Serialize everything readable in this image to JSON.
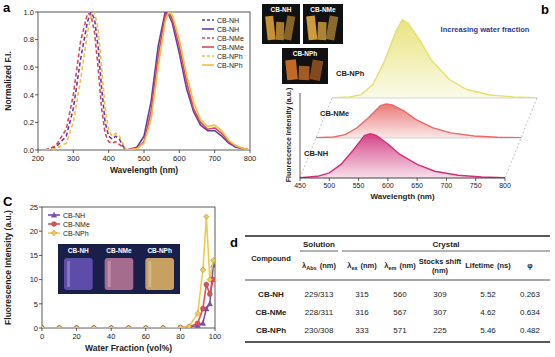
{
  "chart_data": [
    {
      "type": "line",
      "title": "a",
      "x_label": "Wavelength (nm)",
      "y_label": "Normalized F.I.",
      "xlim": [
        200,
        800
      ],
      "xticks": [
        200,
        300,
        400,
        500,
        600,
        700,
        800
      ],
      "ylim": [
        0,
        1
      ],
      "yticks": [
        {
          "value": 0,
          "label": "0.0"
        },
        0.2,
        0.4,
        0.6,
        0.8,
        {
          "value": 1,
          "label": "1.0"
        }
      ],
      "legend": "upper right",
      "annotations": [
        "CB-NH",
        "CB-NMe",
        "CB-NPh"
      ],
      "series": [
        {
          "name": "CB-NH",
          "color": "#6a3d9a",
          "line_style": "dashed",
          "x": [
            220,
            250,
            280,
            300,
            320,
            340,
            350,
            360,
            370,
            380,
            390,
            400,
            410,
            420,
            430,
            440,
            450
          ],
          "values": [
            0,
            0.02,
            0.1,
            0.3,
            0.65,
            0.93,
            1,
            0.95,
            0.75,
            0.45,
            0.2,
            0.1,
            0.08,
            0.1,
            0.08,
            0.03,
            0
          ]
        },
        {
          "name": "CB-NH",
          "color": "#6a3d9a",
          "line_style": "solid",
          "x": [
            450,
            480,
            500,
            520,
            540,
            560,
            570,
            580,
            600,
            620,
            640,
            660,
            680,
            700,
            720,
            740,
            760,
            780,
            800
          ],
          "values": [
            0,
            0.02,
            0.1,
            0.35,
            0.75,
            1,
            0.98,
            0.92,
            0.7,
            0.45,
            0.28,
            0.18,
            0.14,
            0.14,
            0.1,
            0.05,
            0.02,
            0.01,
            0
          ]
        },
        {
          "name": "CB-NMe",
          "color": "#d6485f",
          "line_style": "dashed",
          "x": [
            220,
            250,
            280,
            300,
            320,
            340,
            350,
            360,
            370,
            380,
            390,
            400,
            410,
            420,
            430,
            440,
            450
          ],
          "values": [
            0,
            0.03,
            0.15,
            0.4,
            0.78,
            0.99,
            0.98,
            0.85,
            0.6,
            0.3,
            0.12,
            0.06,
            0.05,
            0.06,
            0.04,
            0.02,
            0
          ]
        },
        {
          "name": "CB-NMe",
          "color": "#d6485f",
          "line_style": "solid",
          "x": [
            450,
            480,
            500,
            520,
            540,
            560,
            570,
            580,
            600,
            620,
            640,
            660,
            680,
            700,
            720,
            740,
            760,
            780,
            800
          ],
          "values": [
            0,
            0.01,
            0.06,
            0.28,
            0.68,
            0.97,
            1,
            0.95,
            0.75,
            0.5,
            0.3,
            0.2,
            0.15,
            0.16,
            0.12,
            0.06,
            0.03,
            0.01,
            0
          ]
        },
        {
          "name": "CB-NPh",
          "color": "#f0c040",
          "line_style": "dashed",
          "x": [
            220,
            250,
            280,
            300,
            320,
            340,
            350,
            360,
            370,
            380,
            390,
            400,
            410,
            420,
            430,
            440,
            450
          ],
          "values": [
            0,
            0.01,
            0.05,
            0.2,
            0.5,
            0.85,
            0.97,
            1,
            0.88,
            0.6,
            0.3,
            0.14,
            0.1,
            0.12,
            0.1,
            0.05,
            0
          ]
        },
        {
          "name": "CB-NPh",
          "color": "#f0c040",
          "line_style": "solid",
          "x": [
            450,
            480,
            500,
            520,
            540,
            560,
            570,
            580,
            600,
            620,
            640,
            660,
            680,
            700,
            720,
            740,
            760,
            780,
            800
          ],
          "values": [
            0,
            0.01,
            0.05,
            0.22,
            0.6,
            0.93,
            1,
            0.98,
            0.8,
            0.55,
            0.35,
            0.22,
            0.17,
            0.18,
            0.14,
            0.07,
            0.03,
            0.01,
            0
          ]
        }
      ]
    },
    {
      "type": "line",
      "title": "b",
      "x_label": "Wavelength (nm)",
      "y_label": "Fluorescence Intensity (a.u.)",
      "xlim": [
        450,
        800
      ],
      "xticks": [
        450,
        500,
        550,
        600,
        650,
        700,
        750,
        800
      ],
      "ylim": [
        0,
        25
      ],
      "tick_labels": "x",
      "annotations": [
        "Increasing water fraction"
      ],
      "x": [
        450,
        480,
        500,
        520,
        540,
        560,
        570,
        580,
        600,
        620,
        650,
        680,
        720,
        760,
        800
      ],
      "series": [
        {
          "name": "CB-NH",
          "color": "#d0307a",
          "values": [
            0.1,
            0.5,
            1.5,
            4,
            8,
            12.5,
            13,
            12.5,
            10,
            7,
            4,
            2,
            0.8,
            0.3,
            0.1
          ]
        },
        {
          "name": "CB-NMe",
          "color": "#e86a6a",
          "values": [
            0.1,
            0.3,
            1,
            3,
            6,
            9.5,
            10,
            9.7,
            8,
            5.5,
            3,
            1.5,
            0.6,
            0.2,
            0.1
          ]
        },
        {
          "name": "CB-NPh",
          "color": "#e6e070",
          "values": [
            0.1,
            0.3,
            1,
            4,
            11,
            20,
            23,
            22,
            17,
            11,
            5.5,
            2.5,
            0.9,
            0.3,
            0.1
          ]
        }
      ]
    },
    {
      "type": "line",
      "title": "C",
      "x_label": "Water Fraction (vol%)",
      "y_label": "Fluorescence Intensity (a.u.)",
      "xlim": [
        0,
        100
      ],
      "xticks": [
        0,
        20,
        40,
        60,
        80,
        100
      ],
      "ylim": [
        0,
        25
      ],
      "yticks": [
        0,
        5,
        10,
        15,
        20,
        25
      ],
      "legend": "upper left",
      "annotations": [
        "CB-NH",
        "CB-NMe",
        "CB-NPh"
      ],
      "x": [
        0,
        10,
        20,
        30,
        40,
        50,
        60,
        70,
        80,
        85,
        90,
        93,
        95,
        97,
        99
      ],
      "series": [
        {
          "name": "CB-NH",
          "color": "#7b4fb0",
          "marker": "triangle",
          "values": [
            0,
            0,
            0,
            0,
            0,
            0,
            0,
            0,
            0.1,
            0.2,
            0.5,
            1,
            4,
            5,
            13
          ]
        },
        {
          "name": "CB-NMe",
          "color": "#e0505a",
          "marker": "circle",
          "values": [
            0,
            0,
            0,
            0,
            0,
            0,
            0,
            0,
            0.1,
            0.2,
            1,
            4,
            9,
            7,
            10
          ]
        },
        {
          "name": "CB-NPh",
          "color": "#f2c94c",
          "marker": "diamond",
          "values": [
            0,
            0,
            0,
            0,
            0,
            0,
            0,
            0,
            0.1,
            0.3,
            3,
            12,
            23,
            10,
            14
          ]
        }
      ]
    }
  ],
  "table": {
    "title": "d",
    "groups": [
      "Solution",
      "Crystal"
    ],
    "columns": [
      {
        "main": "Compound"
      },
      {
        "main": "λ",
        "sub": "Abs",
        "unit": "(nm)"
      },
      {
        "main": "λ",
        "sub": "ex",
        "unit": "(nm)"
      },
      {
        "main": "λ",
        "sub": "em",
        "unit": "(nm)"
      },
      {
        "main": "Stocks shift",
        "unit": "(nm)"
      },
      {
        "main": "Lifetime",
        "unit": "(ns)"
      },
      {
        "main": "φ"
      }
    ],
    "rows": [
      [
        "CB-NH",
        "229/313",
        315,
        560,
        309,
        5.52,
        0.263
      ],
      [
        "CB-NMe",
        "228/311",
        316,
        567,
        307,
        4.62,
        0.634
      ],
      [
        "CB-NPh",
        "230/308",
        333,
        571,
        225,
        5.46,
        0.482
      ]
    ]
  }
}
